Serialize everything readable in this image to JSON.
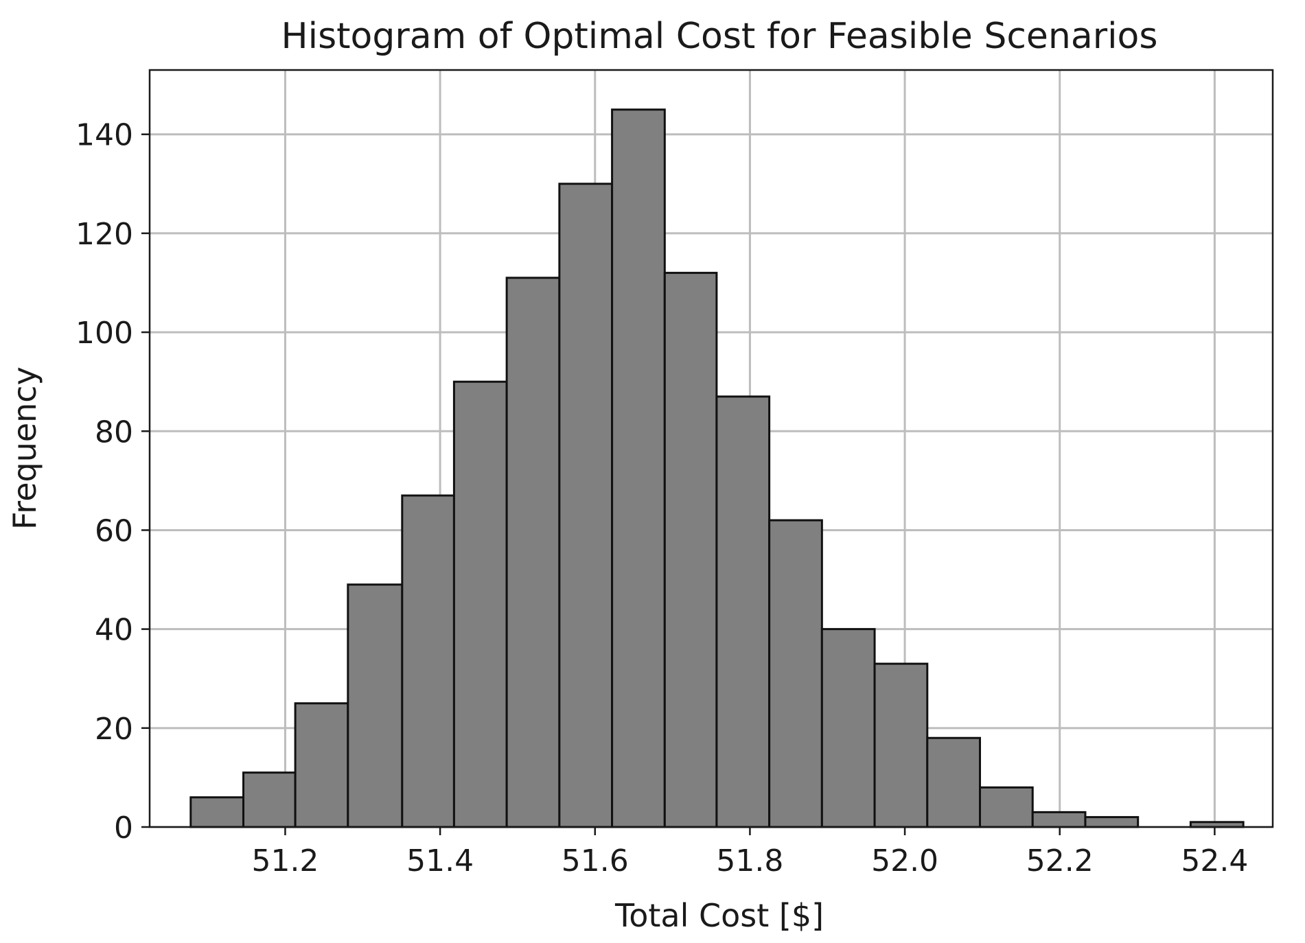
{
  "chart_data": {
    "type": "bar",
    "title": "Histogram of Optimal Cost for Feasible Scenarios",
    "xlabel": "Total Cost [$]",
    "ylabel": "Frequency",
    "xlim": [
      51.025,
      52.475
    ],
    "ylim": [
      0,
      153
    ],
    "x_ticks": [
      51.2,
      51.4,
      51.6,
      51.8,
      52.0,
      52.2,
      52.4
    ],
    "x_tick_labels": [
      "51.2",
      "51.4",
      "51.6",
      "51.8",
      "52.0",
      "52.2",
      "52.4"
    ],
    "y_ticks": [
      0,
      20,
      40,
      60,
      80,
      100,
      120,
      140
    ],
    "y_tick_labels": [
      "0",
      "20",
      "40",
      "60",
      "80",
      "100",
      "120",
      "140"
    ],
    "grid": true,
    "bar_color": "#808080",
    "edge_color": "#111111",
    "bins": [
      {
        "x0": 51.078,
        "x1": 51.146,
        "count": 6
      },
      {
        "x0": 51.146,
        "x1": 51.213,
        "count": 11
      },
      {
        "x0": 51.213,
        "x1": 51.281,
        "count": 25
      },
      {
        "x0": 51.281,
        "x1": 51.351,
        "count": 49
      },
      {
        "x0": 51.351,
        "x1": 51.418,
        "count": 67
      },
      {
        "x0": 51.418,
        "x1": 51.486,
        "count": 90
      },
      {
        "x0": 51.486,
        "x1": 51.554,
        "count": 111
      },
      {
        "x0": 51.554,
        "x1": 51.622,
        "count": 130
      },
      {
        "x0": 51.622,
        "x1": 51.69,
        "count": 145
      },
      {
        "x0": 51.69,
        "x1": 51.757,
        "count": 112
      },
      {
        "x0": 51.757,
        "x1": 51.825,
        "count": 87
      },
      {
        "x0": 51.825,
        "x1": 51.893,
        "count": 62
      },
      {
        "x0": 51.893,
        "x1": 51.961,
        "count": 40
      },
      {
        "x0": 51.961,
        "x1": 52.029,
        "count": 33
      },
      {
        "x0": 52.029,
        "x1": 52.097,
        "count": 18
      },
      {
        "x0": 52.097,
        "x1": 52.165,
        "count": 8
      },
      {
        "x0": 52.165,
        "x1": 52.233,
        "count": 3
      },
      {
        "x0": 52.233,
        "x1": 52.301,
        "count": 2
      },
      {
        "x0": 52.301,
        "x1": 52.369,
        "count": 0
      },
      {
        "x0": 52.369,
        "x1": 52.437,
        "count": 1
      }
    ]
  }
}
